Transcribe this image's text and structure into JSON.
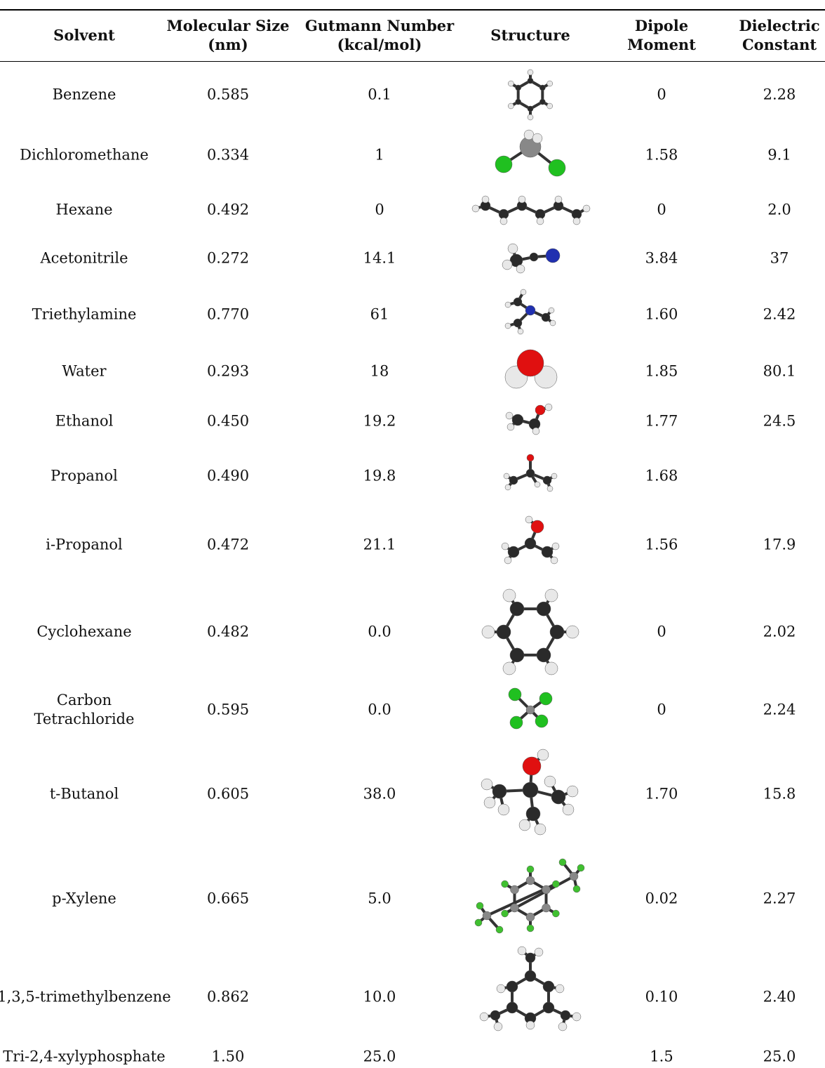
{
  "table": {
    "header": [
      [
        "Solvent"
      ],
      [
        "Molecular Size",
        "(nm)"
      ],
      [
        "Gutmann Number",
        "(kcal/mol)"
      ],
      [
        "Structure"
      ],
      [
        "Dipole",
        "Moment"
      ],
      [
        "Dielectric",
        "Constant"
      ]
    ],
    "rows": [
      [
        "Benzene",
        "0.585",
        "0.1",
        "0",
        "2.28"
      ],
      [
        "Dichloromethane",
        "0.334",
        "1",
        "1.58",
        "9.1"
      ],
      [
        "Hexane",
        "0.492",
        "0",
        "0",
        "2.0"
      ],
      [
        "Acetonitrile",
        "0.272",
        "14.1",
        "3.84",
        "37"
      ],
      [
        "Triethylamine",
        "0.770",
        "61",
        "1.60",
        "2.42"
      ],
      [
        "Water",
        "0.293",
        "18",
        "1.85",
        "80.1"
      ],
      [
        "Ethanol",
        "0.450",
        "19.2",
        "1.77",
        "24.5"
      ],
      [
        "Propanol",
        "0.490",
        "19.8",
        "1.68",
        null
      ],
      [
        "i-Propanol",
        "0.472",
        "21.1",
        "1.56",
        "17.9"
      ],
      [
        "Cyclohexane",
        "0.482",
        "0.0",
        "0",
        "2.02"
      ],
      [
        "Carbon Tetrachloride",
        "0.595",
        "0.0",
        "0",
        "2.24"
      ],
      [
        "t-Butanol",
        "0.605",
        "38.0",
        "1.70",
        "15.8"
      ],
      [
        "p-Xylene",
        "0.665",
        "5.0",
        "0.02",
        "2.27"
      ],
      [
        "1,3,5-trimethylbenzene",
        "0.862",
        "10.0",
        "0.10",
        "2.40"
      ],
      [
        "Tri-2,4-xylyphosphate",
        "1.50",
        "25.0",
        "1.5",
        "25.0"
      ]
    ]
  }
}
